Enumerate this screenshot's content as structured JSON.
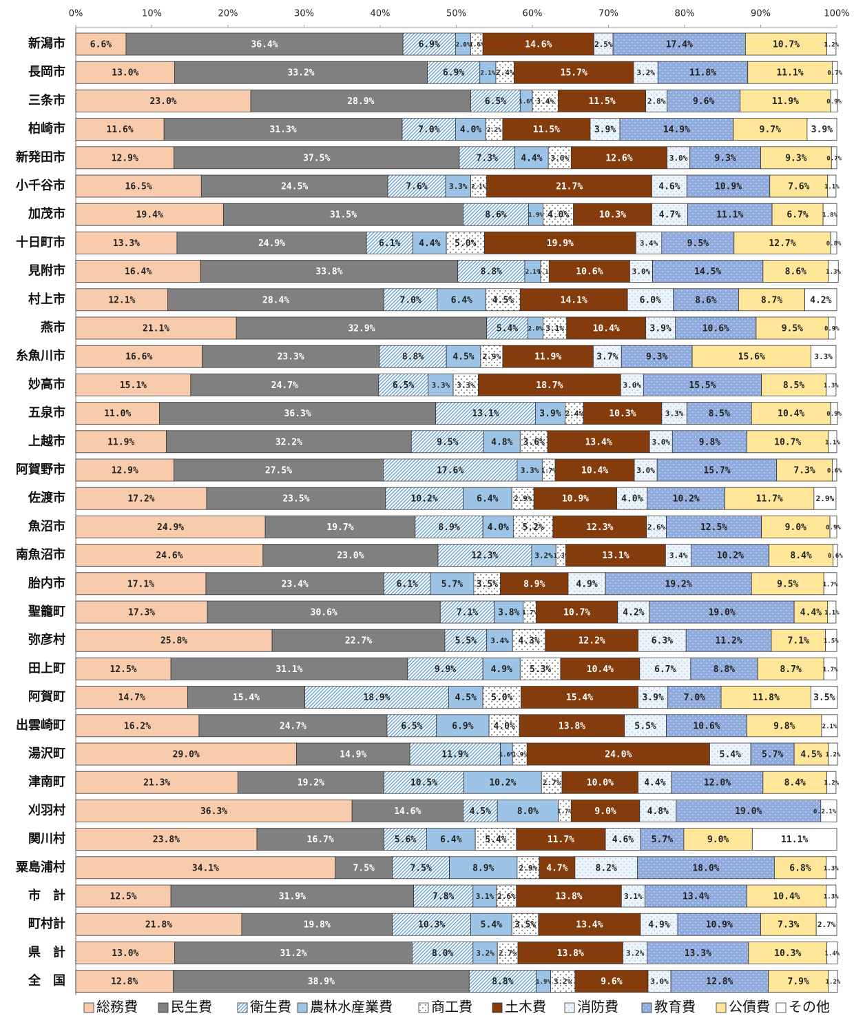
{
  "chart_data": {
    "type": "stacked-bar-horizontal",
    "categories": [
      "新潟市",
      "長岡市",
      "三条市",
      "柏崎市",
      "新発田市",
      "小千谷市",
      "加茂市",
      "十日町市",
      "見附市",
      "村上市",
      "燕市",
      "糸魚川市",
      "妙高市",
      "五泉市",
      "上越市",
      "阿賀野市",
      "佐渡市",
      "魚沼市",
      "南魚沼市",
      "胎内市",
      "聖籠町",
      "弥彦村",
      "田上町",
      "阿賀町",
      "出雲崎町",
      "湯沢町",
      "津南町",
      "刈羽村",
      "関川村",
      "粟島浦村",
      "市　計",
      "町村計",
      "県　計",
      "全　国"
    ],
    "xlim": [
      0,
      100
    ],
    "xticks": [
      {
        "value": 0,
        "label": "0%"
      },
      {
        "value": 10,
        "label": "10%"
      },
      {
        "value": 20,
        "label": "20%"
      },
      {
        "value": 30,
        "label": "30%"
      },
      {
        "value": 40,
        "label": "40%"
      },
      {
        "value": 50,
        "label": "50%"
      },
      {
        "value": 60,
        "label": "60%"
      },
      {
        "value": 70,
        "label": "70%"
      },
      {
        "value": 80,
        "label": "80%"
      },
      {
        "value": 90,
        "label": "90%"
      },
      {
        "value": 100,
        "label": "100%"
      }
    ],
    "series": [
      {
        "name": "総務費",
        "color": "#f8cbad",
        "label_color": "#222",
        "values": [
          6.6,
          13.0,
          23.0,
          11.6,
          12.9,
          16.5,
          19.4,
          13.3,
          16.4,
          12.1,
          21.1,
          16.6,
          15.1,
          11.0,
          11.9,
          12.9,
          17.2,
          24.9,
          24.6,
          17.1,
          17.3,
          25.8,
          12.5,
          14.7,
          16.2,
          29.0,
          21.3,
          36.3,
          23.8,
          34.1,
          12.5,
          21.8,
          13.0,
          12.8
        ],
        "value_labels": [
          "6.6%",
          "13.0%",
          "23.0%",
          "11.6%",
          "12.9%",
          "16.5%",
          "19.4%",
          "13.3%",
          "16.4%",
          "12.1%",
          "21.1%",
          "16.6%",
          "15.1%",
          "11.0%",
          "11.9%",
          "12.9%",
          "17.2%",
          "24.9%",
          "24.6%",
          "17.1%",
          "17.3%",
          "25.8%",
          "12.5%",
          "14.7%",
          "16.2%",
          "29.0%",
          "21.3%",
          "36.3%",
          "23.8%",
          "34.1%",
          "12.5%",
          "21.8%",
          "13.0%",
          "12.8%"
        ]
      },
      {
        "name": "民生費",
        "color": "#808080",
        "label_color": "#fff",
        "values": [
          36.4,
          33.2,
          28.9,
          31.3,
          37.5,
          24.5,
          31.5,
          24.9,
          33.8,
          28.4,
          32.9,
          23.3,
          24.7,
          36.3,
          32.2,
          27.5,
          23.5,
          19.7,
          23.0,
          23.4,
          30.6,
          22.7,
          31.1,
          15.4,
          24.7,
          14.9,
          19.2,
          14.6,
          16.7,
          7.5,
          31.9,
          19.8,
          31.2,
          38.9
        ],
        "value_labels": [
          "36.4%",
          "33.2%",
          "28.9%",
          "31.3%",
          "37.5%",
          "24.5%",
          "31.5%",
          "24.9%",
          "33.8%",
          "28.4%",
          "32.9%",
          "23.3%",
          "24.7%",
          "36.3%",
          "32.2%",
          "27.5%",
          "23.5%",
          "19.7%",
          "23.0%",
          "23.4%",
          "30.6%",
          "22.7%",
          "31.1%",
          "15.4%",
          "24.7%",
          "14.9%",
          "19.2%",
          "14.6%",
          "16.7%",
          "7.5%",
          "31.9%",
          "19.8%",
          "31.2%",
          "38.9%"
        ]
      },
      {
        "name": "衛生費",
        "color": "#ffffff",
        "pattern": "hatch",
        "pattern_color": "#5b9bd5",
        "label_color": "#222",
        "values": [
          6.9,
          6.9,
          6.5,
          7.0,
          7.3,
          7.6,
          8.6,
          6.1,
          8.8,
          7.0,
          5.4,
          8.8,
          6.5,
          13.1,
          9.5,
          17.6,
          10.2,
          8.9,
          12.3,
          6.1,
          7.1,
          5.5,
          9.9,
          18.9,
          6.5,
          11.9,
          10.5,
          4.5,
          5.6,
          7.5,
          7.8,
          10.3,
          8.0,
          8.8
        ],
        "value_labels": [
          "6.9%",
          "6.9%",
          "6.5%",
          "7.0%",
          "7.3%",
          "7.6%",
          "8.6%",
          "6.1%",
          "8.8%",
          "7.0%",
          "5.4%",
          "8.8%",
          "6.5%",
          "13.1%",
          "9.5%",
          "17.6%",
          "10.2%",
          "8.9%",
          "12.3%",
          "6.1%",
          "7.1%",
          "5.5%",
          "9.9%",
          "18.9%",
          "6.5%",
          "11.9%",
          "10.5%",
          "4.5%",
          "5.6%",
          "7.5%",
          "7.8%",
          "10.3%",
          "8.0%",
          "8.8%"
        ]
      },
      {
        "name": "農林水産業費",
        "color": "#9dc3e6",
        "label_color": "#222",
        "values": [
          2.0,
          2.1,
          1.6,
          4.0,
          4.4,
          3.3,
          1.9,
          4.4,
          2.1,
          6.4,
          2.0,
          4.5,
          3.3,
          3.9,
          4.8,
          3.3,
          6.4,
          4.0,
          3.2,
          5.7,
          3.8,
          3.4,
          4.9,
          4.5,
          6.9,
          1.6,
          10.2,
          8.0,
          6.4,
          8.9,
          3.1,
          5.4,
          3.2,
          1.9
        ],
        "value_labels": [
          "2.0%",
          "2.1%",
          "1.6%",
          "4.0%",
          "4.4%",
          "3.3%",
          "1.9%",
          "4.4%",
          "2.1%",
          "6.4%",
          "2.0%",
          "4.5%",
          "3.3%",
          "3.9%",
          "4.8%",
          "3.3%",
          "6.4%",
          "4.0%",
          "3.2%",
          "5.7%",
          "3.8%",
          "3.4%",
          "4.9%",
          "4.5%",
          "6.9%",
          "1.6%",
          "10.2%",
          "8.0%",
          "6.4%",
          "8.9%",
          "3.1%",
          "5.4%",
          "3.2%",
          "1.9%"
        ]
      },
      {
        "name": "商工費",
        "color": "#ffffff",
        "pattern": "dots",
        "pattern_color": "#444444",
        "label_color": "#222",
        "values": [
          1.6,
          2.4,
          3.4,
          2.2,
          3.0,
          2.1,
          4.0,
          5.0,
          1.1,
          4.5,
          3.1,
          2.9,
          3.3,
          2.4,
          3.6,
          1.7,
          2.9,
          5.2,
          1.3,
          3.5,
          1.7,
          4.3,
          5.3,
          5.0,
          4.0,
          1.9,
          2.7,
          1.7,
          5.4,
          2.9,
          2.6,
          3.5,
          2.7,
          3.2
        ],
        "value_labels": [
          "1.6%",
          "2.4%",
          "3.4%",
          "2.2%",
          "3.0%",
          "2.1%",
          "4.0%",
          "5.0%",
          "1.1%",
          "4.5%",
          "3.1%",
          "2.9%",
          "3.3%",
          "2.4%",
          "3.6%",
          "1.7%",
          "2.9%",
          "5.2%",
          "1.3%",
          "3.5%",
          "1.7%",
          "4.3%",
          "5.3%",
          "5.0%",
          "4.0%",
          "1.9%",
          "2.7%",
          "1.7%",
          "5.4%",
          "2.9%",
          "2.6%",
          "3.5%",
          "2.7%",
          "3.2%"
        ]
      },
      {
        "name": "土木費",
        "color": "#843c0c",
        "label_color": "#fff",
        "values": [
          14.6,
          15.7,
          11.5,
          11.5,
          12.6,
          21.7,
          10.3,
          19.9,
          10.6,
          14.1,
          10.4,
          11.9,
          18.7,
          10.3,
          13.4,
          10.4,
          10.9,
          12.3,
          13.1,
          8.9,
          10.7,
          12.2,
          10.4,
          15.4,
          13.8,
          24.0,
          10.0,
          9.0,
          11.7,
          4.7,
          13.8,
          13.4,
          13.8,
          9.6
        ],
        "value_labels": [
          "14.6%",
          "15.7%",
          "11.5%",
          "11.5%",
          "12.6%",
          "21.7%",
          "10.3%",
          "19.9%",
          "10.6%",
          "14.1%",
          "10.4%",
          "11.9%",
          "18.7%",
          "10.3%",
          "13.4%",
          "10.4%",
          "10.9%",
          "12.3%",
          "13.1%",
          "8.9%",
          "10.7%",
          "12.2%",
          "10.4%",
          "15.4%",
          "13.8%",
          "24.0%",
          "10.0%",
          "9.0%",
          "11.7%",
          "4.7%",
          "13.8%",
          "13.4%",
          "13.8%",
          "9.6%"
        ]
      },
      {
        "name": "消防費",
        "color": "#eef4fb",
        "pattern": "dots",
        "pattern_color": "#9dc3e6",
        "label_color": "#222",
        "values": [
          2.5,
          3.2,
          2.8,
          3.9,
          3.0,
          4.6,
          4.7,
          3.4,
          3.0,
          6.0,
          3.9,
          3.7,
          3.0,
          3.3,
          3.0,
          3.0,
          4.0,
          2.6,
          3.4,
          4.9,
          4.2,
          6.3,
          6.7,
          3.9,
          5.5,
          5.4,
          4.4,
          4.8,
          4.6,
          8.2,
          3.1,
          4.9,
          3.2,
          3.0
        ],
        "value_labels": [
          "2.5%",
          "3.2%",
          "2.8%",
          "3.9%",
          "3.0%",
          "4.6%",
          "4.7%",
          "3.4%",
          "3.0%",
          "6.0%",
          "3.9%",
          "3.7%",
          "3.0%",
          "3.3%",
          "3.0%",
          "3.0%",
          "4.0%",
          "2.6%",
          "3.4%",
          "4.9%",
          "4.2%",
          "6.3%",
          "6.7%",
          "3.9%",
          "5.5%",
          "5.4%",
          "4.4%",
          "4.8%",
          "4.6%",
          "8.2%",
          "3.1%",
          "4.9%",
          "3.2%",
          "3.0%"
        ]
      },
      {
        "name": "教育費",
        "color": "#8faadc",
        "pattern": "dots",
        "pattern_color": "#dde6f5",
        "label_color": "#222",
        "values": [
          17.4,
          11.8,
          9.6,
          14.9,
          9.3,
          10.9,
          11.1,
          9.5,
          14.5,
          8.6,
          10.6,
          9.3,
          15.5,
          8.5,
          9.8,
          15.7,
          10.2,
          12.5,
          10.2,
          19.2,
          19.0,
          11.2,
          8.8,
          7.0,
          10.6,
          5.7,
          12.0,
          19.0,
          5.7,
          18.0,
          13.4,
          10.9,
          13.3,
          12.8
        ],
        "value_labels": [
          "17.4%",
          "11.8%",
          "9.6%",
          "14.9%",
          "9.3%",
          "10.9%",
          "11.1%",
          "9.5%",
          "14.5%",
          "8.6%",
          "10.6%",
          "9.3%",
          "15.5%",
          "8.5%",
          "9.8%",
          "15.7%",
          "10.2%",
          "12.5%",
          "10.2%",
          "19.2%",
          "19.0%",
          "11.2%",
          "8.8%",
          "7.0%",
          "10.6%",
          "5.7%",
          "12.0%",
          "19.0%",
          "5.7%",
          "18.0%",
          "13.4%",
          "10.9%",
          "13.3%",
          "12.8%"
        ]
      },
      {
        "name": "公債費",
        "color": "#ffe699",
        "label_color": "#222",
        "values": [
          10.7,
          11.1,
          11.9,
          9.7,
          9.3,
          7.6,
          6.7,
          12.7,
          8.6,
          8.7,
          9.5,
          15.6,
          8.5,
          10.4,
          10.7,
          7.3,
          11.7,
          9.0,
          8.4,
          9.5,
          4.4,
          7.1,
          8.7,
          11.8,
          9.8,
          4.5,
          8.4,
          0.0,
          9.0,
          6.8,
          10.4,
          7.3,
          10.3,
          7.9
        ],
        "value_labels": [
          "10.7%",
          "11.1%",
          "11.9%",
          "9.7%",
          "9.3%",
          "7.6%",
          "6.7%",
          "12.7%",
          "8.6%",
          "8.7%",
          "9.5%",
          "15.6%",
          "8.5%",
          "10.4%",
          "10.7%",
          "7.3%",
          "11.7%",
          "9.0%",
          "8.4%",
          "9.5%",
          "4.4%",
          "7.1%",
          "8.7%",
          "11.8%",
          "9.8%",
          "4.5%",
          "8.4%",
          "0.0%",
          "9.0%",
          "6.8%",
          "10.4%",
          "7.3%",
          "10.3%",
          "7.9%"
        ]
      },
      {
        "name": "その他",
        "color": "#ffffff",
        "label_color": "#222",
        "values": [
          1.2,
          0.7,
          0.9,
          3.9,
          0.7,
          1.1,
          1.8,
          0.8,
          1.3,
          4.2,
          0.9,
          3.3,
          1.3,
          0.9,
          1.1,
          0.6,
          2.9,
          0.9,
          0.6,
          1.7,
          1.1,
          1.5,
          1.7,
          3.5,
          2.1,
          1.2,
          1.2,
          2.1,
          11.1,
          1.3,
          1.3,
          2.7,
          1.4,
          1.2
        ],
        "value_labels": [
          "1.2%",
          "0.7%",
          "0.9%",
          "3.9%",
          "0.7%",
          "1.1%",
          "1.8%",
          "0.8%",
          "1.3%",
          "4.2%",
          "0.9%",
          "3.3%",
          "1.3%",
          "0.9%",
          "1.1%",
          "0.6%",
          "2.9%",
          "0.9%",
          "0.6%",
          "1.7%",
          "1.1%",
          "1.5%",
          "1.7%",
          "3.5%",
          "2.1%",
          "1.2%",
          "1.2%",
          "2.1%",
          "11.1%",
          "1.3%",
          "1.3%",
          "2.7%",
          "1.4%",
          "1.2%"
        ]
      }
    ],
    "legend": "bottom"
  }
}
